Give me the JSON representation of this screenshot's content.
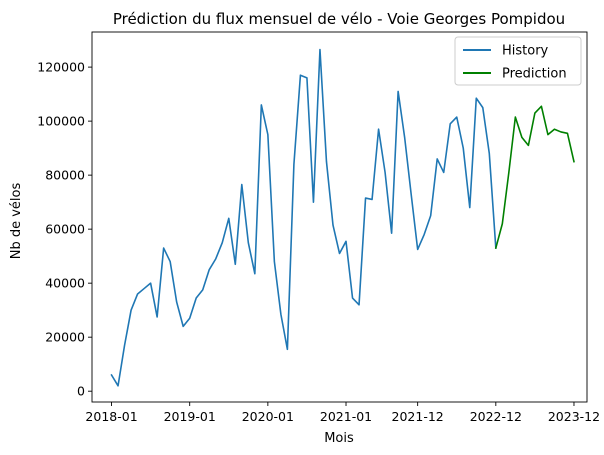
{
  "chart_data": {
    "type": "line",
    "title": "Prédiction du flux mensuel de vélo - Voie Georges Pompidou",
    "xlabel": "Mois",
    "ylabel": "Nb de vélos",
    "x_ticks": [
      "2018-01",
      "2019-01",
      "2020-01",
      "2021-01",
      "2021-12",
      "2022-12",
      "2023-12"
    ],
    "y_ticks": [
      0,
      20000,
      40000,
      60000,
      80000,
      100000,
      120000
    ],
    "y_tick_labels": [
      "0",
      "20000",
      "40000",
      "60000",
      "80000",
      "100000",
      "120000"
    ],
    "xlim": [
      "2017-10",
      "2024-02"
    ],
    "ylim": [
      -4000,
      133000
    ],
    "legend_position": "top-right",
    "grid": false,
    "series": [
      {
        "name": "History",
        "color": "#1f77b4",
        "x": [
          "2018-01",
          "2018-02",
          "2018-03",
          "2018-04",
          "2018-05",
          "2018-06",
          "2018-07",
          "2018-08",
          "2018-09",
          "2018-10",
          "2018-11",
          "2018-12",
          "2019-01",
          "2019-02",
          "2019-03",
          "2019-04",
          "2019-05",
          "2019-06",
          "2019-07",
          "2019-08",
          "2019-09",
          "2019-10",
          "2019-11",
          "2019-12",
          "2020-01",
          "2020-02",
          "2020-03",
          "2020-04",
          "2020-05",
          "2020-06",
          "2020-07",
          "2020-08",
          "2020-09",
          "2020-10",
          "2020-11",
          "2020-12",
          "2021-01",
          "2021-02",
          "2021-03",
          "2021-04",
          "2021-05",
          "2021-06",
          "2021-07",
          "2021-08",
          "2021-09",
          "2021-10",
          "2021-11",
          "2021-12",
          "2022-01",
          "2022-02",
          "2022-03",
          "2022-04",
          "2022-05",
          "2022-06",
          "2022-07",
          "2022-08",
          "2022-09",
          "2022-10",
          "2022-11",
          "2022-12"
        ],
        "values": [
          6000,
          2000,
          17000,
          30000,
          36000,
          38000,
          40000,
          27500,
          53000,
          48000,
          33000,
          24000,
          27000,
          34500,
          37500,
          45000,
          49000,
          55000,
          64000,
          47000,
          76500,
          55000,
          43500,
          106000,
          95000,
          48000,
          28500,
          15500,
          84000,
          117000,
          116000,
          70000,
          126500,
          85000,
          61500,
          51000,
          55500,
          34500,
          32000,
          71500,
          71000,
          97000,
          81000,
          58500,
          111000,
          94000,
          73000,
          52500,
          58000,
          65000,
          86000,
          81000,
          99000,
          101500,
          90000,
          68000,
          108500,
          105000,
          88000,
          53000
        ]
      },
      {
        "name": "Prediction",
        "color": "#008000",
        "x": [
          "2022-12",
          "2023-01",
          "2023-02",
          "2023-03",
          "2023-04",
          "2023-05",
          "2023-06",
          "2023-07",
          "2023-08",
          "2023-09",
          "2023-10",
          "2023-11",
          "2023-12"
        ],
        "values": [
          53000,
          62000,
          81000,
          101500,
          94000,
          91000,
          103000,
          105500,
          95000,
          97000,
          96000,
          95500,
          85000
        ]
      }
    ]
  }
}
